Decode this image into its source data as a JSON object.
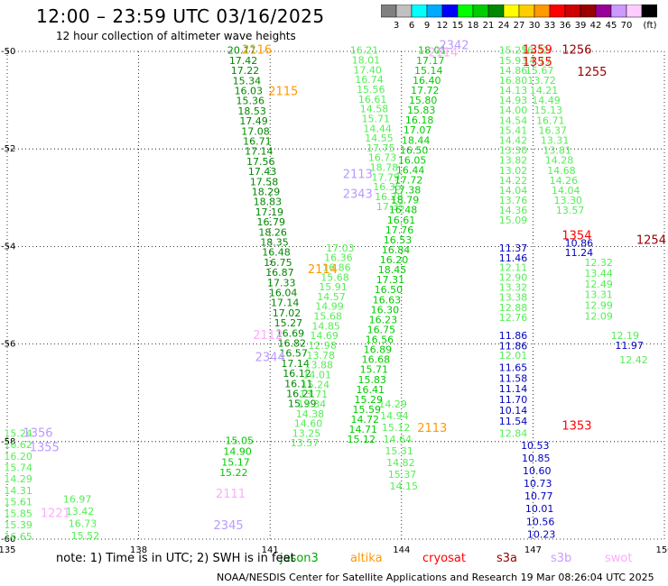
{
  "header": {
    "title": "12:00 – 23:59 UTC 03/16/2025",
    "subtitle": "12 hour collection of altimeter wave heights"
  },
  "color_scale": {
    "unit_label": "(ft)",
    "bins": [
      {
        "label": "",
        "color": "#808080"
      },
      {
        "label": "3",
        "color": "#c0c0c0"
      },
      {
        "label": "6",
        "color": "#00ffff"
      },
      {
        "label": "9",
        "color": "#00aaff"
      },
      {
        "label": "12",
        "color": "#0000ff"
      },
      {
        "label": "15",
        "color": "#00ff00"
      },
      {
        "label": "18",
        "color": "#00cc00"
      },
      {
        "label": "21",
        "color": "#008800"
      },
      {
        "label": "24",
        "color": "#ffff00"
      },
      {
        "label": "27",
        "color": "#ffcc00"
      },
      {
        "label": "30",
        "color": "#ff9900"
      },
      {
        "label": "33",
        "color": "#ff0000"
      },
      {
        "label": "36",
        "color": "#cc0000"
      },
      {
        "label": "39",
        "color": "#990000"
      },
      {
        "label": "42",
        "color": "#990099"
      },
      {
        "label": "45",
        "color": "#cc99ff"
      },
      {
        "label": "70",
        "color": "#ffccff"
      },
      {
        "label": "",
        "color": "#000000"
      }
    ]
  },
  "footer": {
    "note": "note: 1) Time is in UTC; 2) SWH is in feet",
    "credit": "NOAA/NESDIS Center for Satellite Applications and Research   19 Mar 08:26:04 UTC 2025",
    "satellites": [
      {
        "name": "jason3",
        "color": "#00aa00"
      },
      {
        "name": "altika",
        "color": "#ff9900"
      },
      {
        "name": "cryosat",
        "color": "#ff0000"
      },
      {
        "name": "s3a",
        "color": "#990000"
      },
      {
        "name": "s3b",
        "color": "#cc99ff"
      },
      {
        "name": "swot",
        "color": "#ffaaff"
      }
    ]
  },
  "chart_data": {
    "type": "scatter",
    "title": "12:00 – 23:59 UTC 03/16/2025",
    "xlim": [
      135,
      150
    ],
    "ylim": [
      -60,
      -50
    ],
    "x_ticks": [
      "135",
      "138",
      "141",
      "144",
      "147",
      "150"
    ],
    "y_ticks": [
      "-50",
      "-52",
      "-54",
      "-56",
      "-58",
      "-60"
    ],
    "grid": true,
    "colors": {
      "dg": "#008800",
      "mg": "#00cc00",
      "lg": "#55ee55",
      "bl": "#0000bb",
      "or": "#ff9900",
      "rd": "#ff0000",
      "dr": "#990000",
      "lv": "#bb99ff",
      "pk": "#ffaaff"
    },
    "pass_labels": [
      {
        "text": "2116",
        "x": 140.7,
        "y": -50.05,
        "color": "or"
      },
      {
        "text": "2115",
        "x": 141.3,
        "y": -50.9,
        "color": "or"
      },
      {
        "text": "2342",
        "x": 145.2,
        "y": -49.95,
        "color": "lv"
      },
      {
        "text": "2114",
        "x": 144.95,
        "y": -50.1,
        "color": "pk"
      },
      {
        "text": "1359",
        "x": 147.1,
        "y": -50.05,
        "color": "rd"
      },
      {
        "text": "1256",
        "x": 148.0,
        "y": -50.05,
        "color": "dr"
      },
      {
        "text": "1355",
        "x": 147.1,
        "y": -50.3,
        "color": "rd"
      },
      {
        "text": "1255",
        "x": 148.35,
        "y": -50.5,
        "color": "dr"
      },
      {
        "text": "2113",
        "x": 143.0,
        "y": -52.6,
        "color": "lv"
      },
      {
        "text": "2343",
        "x": 143.0,
        "y": -53.0,
        "color": "lv"
      },
      {
        "text": "1354",
        "x": 148.0,
        "y": -53.85,
        "color": "rd"
      },
      {
        "text": "1254",
        "x": 149.7,
        "y": -53.95,
        "color": "dr"
      },
      {
        "text": "2114",
        "x": 142.2,
        "y": -54.55,
        "color": "or"
      },
      {
        "text": "2112",
        "x": 140.95,
        "y": -55.9,
        "color": "pk"
      },
      {
        "text": "2344",
        "x": 141.0,
        "y": -56.35,
        "color": "lv"
      },
      {
        "text": "1353",
        "x": 148.0,
        "y": -57.75,
        "color": "rd"
      },
      {
        "text": "2113",
        "x": 144.7,
        "y": -57.8,
        "color": "or"
      },
      {
        "text": "1356",
        "x": 135.7,
        "y": -57.9,
        "color": "lv"
      },
      {
        "text": "1355",
        "x": 135.85,
        "y": -58.2,
        "color": "lv"
      },
      {
        "text": "2111",
        "x": 140.1,
        "y": -59.15,
        "color": "pk"
      },
      {
        "text": "1221",
        "x": 136.1,
        "y": -59.55,
        "color": "pk"
      },
      {
        "text": "2345",
        "x": 140.05,
        "y": -59.8,
        "color": "lv"
      }
    ],
    "tracks": [
      {
        "name": "dg-desc",
        "color": "dg",
        "x0": 140.35,
        "dx": 0.0395,
        "y0": -50.05,
        "dy": 0.207,
        "values": [
          "20.17",
          "17.42",
          "17.22",
          "15.34",
          "16.03",
          "15.36",
          "18.53",
          "17.49",
          "17.08",
          "16.71",
          "17.14",
          "17.56",
          "17.43",
          "17.58",
          "18.29",
          "18.83",
          "17.19",
          "16.79",
          "18.26",
          "18.35",
          "16.48",
          "16.75",
          "16.87",
          "17.33",
          "16.04",
          "17.14",
          "17.02",
          "15.27",
          "16.69",
          "16.82",
          "16.57",
          "17.14",
          "16.12",
          "16.11",
          "16.21",
          "15.99"
        ]
      },
      {
        "name": "lg-desc",
        "color": "lg",
        "x0": 143.15,
        "dx": 0.0375,
        "y0": -50.05,
        "dy": 0.2,
        "values": [
          "16.21",
          "18.01",
          "17.40",
          "16.74",
          "15.56",
          "16.61",
          "14.58",
          "15.71",
          "14.44",
          "14.55",
          "17.75",
          "16.73",
          "18.78",
          "17.79",
          "16.35",
          "16.28",
          "17.35"
        ]
      },
      {
        "name": "lg-track-a",
        "color": "lg",
        "x0": 143.8,
        "dx": 0.036,
        "y0": -57.3,
        "dy": 0.24,
        "values": [
          "14.29",
          "14.94",
          "15.12",
          "14.64",
          "15.31",
          "14.82",
          "15.37",
          "14.15"
        ]
      },
      {
        "name": "mg-asc",
        "color": "mg",
        "x0": 144.7,
        "dx": -0.0415,
        "y0": -50.05,
        "dy": 0.2045,
        "values": [
          "18.01",
          "17.17",
          "15.14",
          "16.40",
          "17.72",
          "15.80",
          "15.83",
          "16.18",
          "17.07",
          "18.44",
          "16.50",
          "16.05",
          "16.44",
          "17.72",
          "17.38",
          "18.79",
          "16.48",
          "16.61",
          "17.76",
          "16.53",
          "16.84",
          "16.20",
          "18.45",
          "17.31",
          "16.50",
          "16.63",
          "16.30",
          "16.23",
          "16.75",
          "16.56",
          "16.89",
          "16.68",
          "15.71",
          "15.83",
          "16.41",
          "15.29",
          "15.59",
          "14.72",
          "14.71",
          "15.12"
        ]
      },
      {
        "name": "lg-asc",
        "color": "lg",
        "x0": 142.6,
        "dx": -0.0405,
        "y0": -54.1,
        "dy": 0.2,
        "values": [
          "17.03",
          "16.36",
          "16.86",
          "15.68",
          "15.91",
          "14.57",
          "14.99",
          "15.68",
          "14.85",
          "14.69",
          "12.98",
          "13.78",
          "13.88",
          "14.01",
          "15.24",
          "13.71",
          "15.34",
          "14.38",
          "14.60",
          "13.25",
          "13.57"
        ]
      },
      {
        "name": "mg-asc-2",
        "color": "mg",
        "x0": 140.3,
        "dx": -0.044,
        "y0": -58.05,
        "dy": 0.22,
        "values": [
          "15.05",
          "14.90",
          "15.17",
          "15.22"
        ]
      },
      {
        "name": "lg-s3a",
        "color": "lg",
        "x0": 146.55,
        "dx": 0.0,
        "y0": -50.05,
        "dy": 0.205,
        "values": [
          "15.25",
          "15.93",
          "14.86",
          "16.80",
          "14.13",
          "14.93",
          "14.00",
          "14.54",
          "15.41",
          "14.42",
          "13.30",
          "13.82",
          "13.02",
          "14.22",
          "14.04",
          "13.76",
          "14.36",
          "15.09"
        ]
      },
      {
        "name": "lg-s3a-b",
        "color": "lg",
        "x0": 147.05,
        "dx": 0.05,
        "y0": -50.05,
        "dy": 0.205,
        "values": [
          "16.32",
          "14.17",
          "15.67",
          "13.72",
          "14.21",
          "14.49",
          "15.13",
          "16.71",
          "16.37",
          "13.31",
          "13.81",
          "14.28",
          "14.68",
          "14.26",
          "14.04",
          "13.30",
          "13.57"
        ]
      },
      {
        "name": "bl-s3a",
        "color": "bl",
        "x0": 146.55,
        "dx": 0.0,
        "y0": -54.1,
        "dy": 0.205,
        "values": [
          "11.37",
          "11.46"
        ]
      },
      {
        "name": "lg-s3a-c",
        "color": "lg",
        "x0": 146.55,
        "dx": 0.0,
        "y0": -54.5,
        "dy": 0.205,
        "values": [
          "12.11",
          "12.90",
          "13.32",
          "13.38",
          "12.88",
          "12.76"
        ]
      },
      {
        "name": "bl-s3a-b",
        "color": "bl",
        "x0": 146.55,
        "dx": 0.0,
        "y0": -55.9,
        "dy": 0.205,
        "values": [
          "11.86",
          "11.86"
        ]
      },
      {
        "name": "lg-s3a-d",
        "color": "lg",
        "x0": 146.55,
        "dx": 0.0,
        "y0": -56.3,
        "dy": 0.205,
        "values": [
          "12.01"
        ]
      },
      {
        "name": "bl-s3a-c",
        "color": "bl",
        "x0": 146.55,
        "dx": 0.0,
        "y0": -56.55,
        "dy": 0.22,
        "values": [
          "11.65",
          "11.58",
          "11.14",
          "11.70",
          "10.14",
          "11.54"
        ]
      },
      {
        "name": "lg-s3a-e",
        "color": "lg",
        "x0": 146.55,
        "dx": 0.0,
        "y0": -57.9,
        "dy": 0.2,
        "values": [
          "12.84"
        ]
      },
      {
        "name": "bl-s3a-d",
        "color": "bl",
        "x0": 147.05,
        "dx": 0.02,
        "y0": -58.15,
        "dy": 0.26,
        "values": [
          "10.53",
          "10.85",
          "10.60",
          "10.73",
          "10.77",
          "10.01",
          "10.56",
          "10.23"
        ]
      },
      {
        "name": "bl-s3b",
        "color": "bl",
        "x0": 148.05,
        "dx": 0.0,
        "y0": -54.0,
        "dy": 0.2,
        "values": [
          "10.86",
          "11.24"
        ]
      },
      {
        "name": "lg-s3b",
        "color": "lg",
        "x0": 148.5,
        "dx": 0.0,
        "y0": -54.4,
        "dy": 0.22,
        "values": [
          "12.32",
          "13.44",
          "12.49",
          "13.31",
          "12.99",
          "12.09"
        ]
      },
      {
        "name": "lg-s3b-2",
        "color": "lg",
        "x0": 149.1,
        "dx": 0.0,
        "y0": -55.9,
        "dy": 0.2,
        "values": [
          "12.19"
        ]
      },
      {
        "name": "bl-s3b-2",
        "color": "bl",
        "x0": 149.2,
        "dx": 0.0,
        "y0": -56.1,
        "dy": 0.2,
        "values": [
          "11.97"
        ]
      },
      {
        "name": "lg-s3b-3",
        "color": "lg",
        "x0": 149.3,
        "dx": 0.0,
        "y0": -56.4,
        "dy": 0.2,
        "values": [
          "12.42"
        ]
      },
      {
        "name": "lg-left",
        "color": "lg",
        "x0": 135.25,
        "dx": 0.0,
        "y0": -57.9,
        "dy": 0.235,
        "values": [
          "15.24",
          "16.62",
          "16.20",
          "15.74",
          "14.29",
          "14.31",
          "15.61",
          "15.85",
          "15.39",
          "16.65"
        ]
      },
      {
        "name": "lg-left-2",
        "color": "lg",
        "x0": 136.6,
        "dx": 0.06,
        "y0": -59.25,
        "dy": 0.25,
        "values": [
          "16.97",
          "13.42",
          "16.73",
          "15.52"
        ]
      }
    ]
  }
}
